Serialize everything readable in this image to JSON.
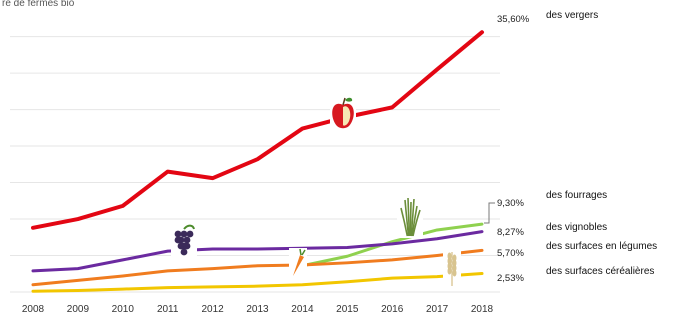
{
  "chart_data": {
    "type": "line",
    "title": "",
    "subtitle": "re de fermes bio",
    "xlabel": "",
    "ylabel": "",
    "x": [
      "2008",
      "2009",
      "2010",
      "2011",
      "2012",
      "2013",
      "2014",
      "2015",
      "2016",
      "2017",
      "2018"
    ],
    "ylim": [
      0,
      37
    ],
    "grid": true,
    "series": [
      {
        "icon": "apple-icon",
        "color": "#e30613",
        "values": [
          8.8,
          10.0,
          11.8,
          16.5,
          15.6,
          18.2,
          22.4,
          24.0,
          25.3,
          30.5,
          35.6
        ],
        "end_value_label": "35,60%",
        "label": "des vergers"
      },
      {
        "icon": "grass-icon",
        "color": "#8fd14f",
        "values": [
          null,
          null,
          null,
          null,
          null,
          null,
          3.6,
          4.9,
          6.9,
          8.5,
          9.3
        ],
        "end_value_label": "9,30%",
        "label": "des fourrages"
      },
      {
        "icon": "grapes-icon",
        "color": "#6b2aa0",
        "values": [
          2.9,
          3.2,
          4.4,
          5.6,
          5.9,
          5.9,
          6.0,
          6.1,
          6.6,
          7.3,
          8.27
        ],
        "end_value_label": "8,27%",
        "label": "des vignobles"
      },
      {
        "icon": "carrot-icon",
        "color": "#f07c1f",
        "values": [
          1.0,
          1.6,
          2.2,
          2.9,
          3.2,
          3.6,
          3.7,
          4.0,
          4.4,
          5.0,
          5.7
        ],
        "end_value_label": "5,70%",
        "label": "des surfaces en légumes"
      },
      {
        "icon": "wheat-icon",
        "color": "#f2c600",
        "values": [
          0.1,
          0.2,
          0.4,
          0.6,
          0.7,
          0.8,
          1.0,
          1.4,
          1.9,
          2.1,
          2.53
        ],
        "end_value_label": "2,53%",
        "label": "des surfaces céréalières"
      }
    ]
  }
}
